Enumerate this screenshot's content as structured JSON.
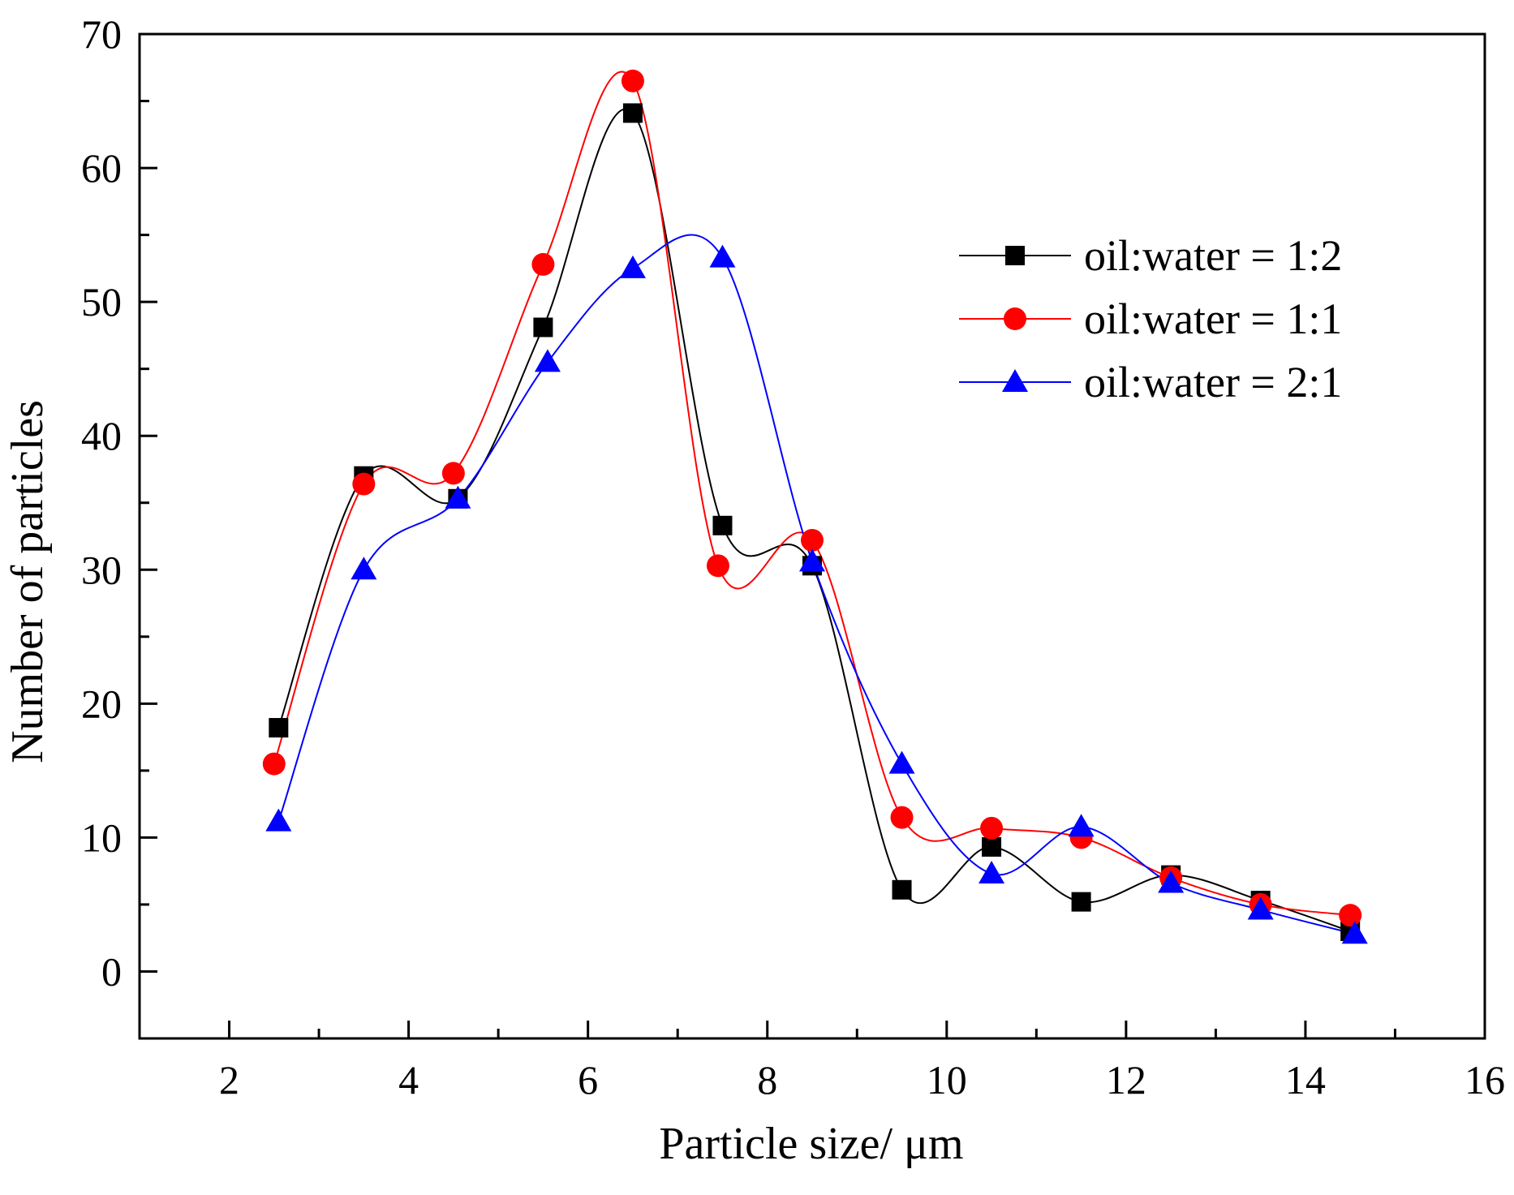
{
  "chart_data": {
    "type": "line",
    "title": "",
    "xlabel": "Particle size/ μm",
    "ylabel": "Number of particles",
    "xlim": [
      1,
      16
    ],
    "ylim": [
      -5,
      70
    ],
    "xticks": [
      2,
      4,
      6,
      8,
      10,
      12,
      14,
      16
    ],
    "yticks": [
      0,
      10,
      20,
      30,
      40,
      50,
      60,
      70
    ],
    "grid": false,
    "legend_position": "top-right",
    "series": [
      {
        "name": "oil:water = 1:2",
        "color": "#000000",
        "marker": "square",
        "x": [
          2.55,
          3.5,
          4.55,
          5.5,
          6.5,
          7.5,
          8.5,
          9.5,
          10.5,
          11.5,
          12.5,
          13.5,
          14.5
        ],
        "y": [
          18.2,
          37.0,
          35.3,
          48.1,
          64.1,
          33.3,
          30.3,
          6.1,
          9.3,
          5.2,
          7.2,
          5.3,
          3.0
        ]
      },
      {
        "name": "oil:water = 1:1",
        "color": "#ff0000",
        "marker": "circle",
        "x": [
          2.5,
          3.5,
          4.5,
          5.5,
          6.5,
          7.45,
          8.5,
          9.5,
          10.5,
          11.5,
          12.5,
          13.5,
          14.5
        ],
        "y": [
          15.5,
          36.4,
          37.2,
          52.8,
          66.5,
          30.3,
          32.2,
          11.5,
          10.7,
          10.0,
          7.0,
          5.0,
          4.2
        ]
      },
      {
        "name": "oil:water = 2:1",
        "color": "#0000ff",
        "marker": "triangle",
        "x": [
          2.55,
          3.5,
          4.55,
          5.55,
          6.5,
          7.5,
          8.5,
          9.5,
          10.5,
          11.5,
          12.5,
          13.5,
          14.55
        ],
        "y": [
          11.2,
          30.0,
          35.3,
          45.5,
          52.5,
          53.3,
          30.6,
          15.5,
          7.3,
          10.8,
          6.6,
          4.6,
          2.8
        ]
      }
    ]
  }
}
